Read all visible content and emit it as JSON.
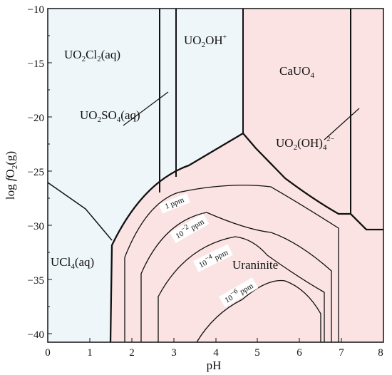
{
  "x_axis": {
    "label": "pH",
    "ticks": [
      "0",
      "1",
      "2",
      "3",
      "4",
      "5",
      "6",
      "7",
      "8"
    ],
    "range": [
      0,
      8
    ]
  },
  "y_axis": {
    "label_prefix": "log ",
    "label_italic": "f",
    "label_species": "O",
    "label_sub": "2",
    "label_suffix": "(g)",
    "ticks": [
      "−10",
      "−15",
      "−20",
      "−25",
      "−30",
      "−35",
      "−40"
    ],
    "range": [
      -41,
      -10
    ]
  },
  "fields": {
    "uo2cl2": {
      "a": "UO",
      "s1": "2",
      "b": "Cl",
      "s2": "2",
      "c": "(aq)"
    },
    "uo2oh": {
      "a": "UO",
      "s1": "2",
      "b": "OH",
      "sup": "+"
    },
    "cauo4": {
      "a": "CaUO",
      "s1": "4"
    },
    "uo2so4": {
      "a": "UO",
      "s1": "2",
      "b": "SO",
      "s2": "4",
      "c": "(aq)"
    },
    "uo2oh4": {
      "a": "UO",
      "s1": "2",
      "b": "(OH)",
      "s2": "4",
      "sup": "2−"
    },
    "ucl4": {
      "a": "UCl",
      "s1": "4",
      "c": "(aq)"
    },
    "uraninite": "Uraninite"
  },
  "contours": {
    "c1": {
      "text": "1 ppm"
    },
    "c2": {
      "base": "10",
      "exp": "−2",
      "unit": " ppm"
    },
    "c3": {
      "base": "10",
      "exp": "−4",
      "unit": " ppm"
    },
    "c4": {
      "base": "10",
      "exp": "−6",
      "unit": " ppm"
    }
  },
  "colors": {
    "blue_field": "#eef6fa",
    "pink_field": "#fbe3e3",
    "lines": "#111111"
  }
}
